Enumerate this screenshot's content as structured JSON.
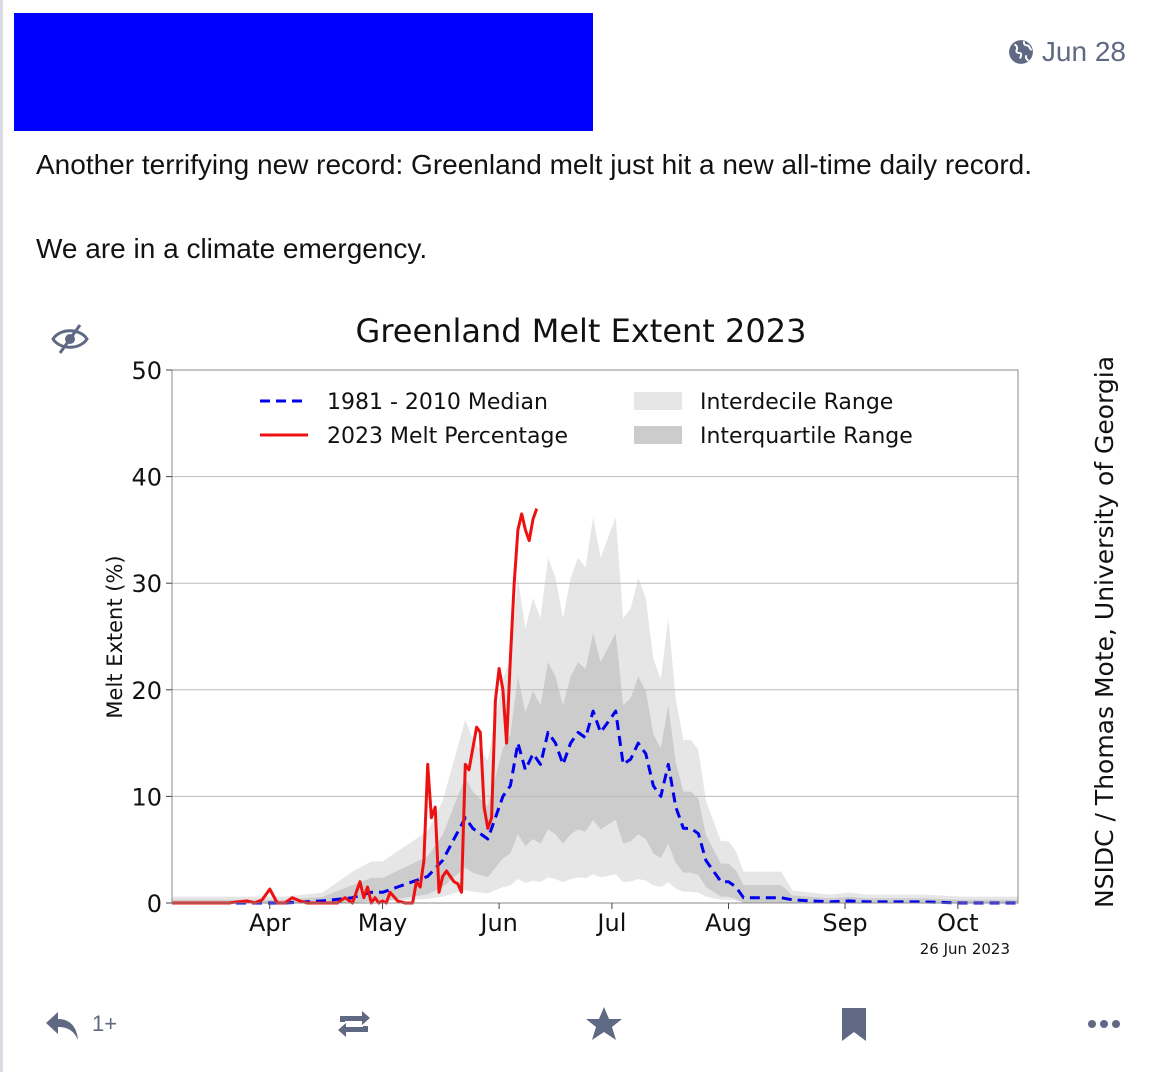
{
  "post": {
    "timestamp": "Jun 28",
    "text_line1": "Another terrifying new record: Greenland melt just hit a new all-time daily record.",
    "text_line2": "We are in a climate emergency.",
    "reply_count": "1+"
  },
  "icons": {
    "visibility": "globe-icon",
    "hide_media": "eye-slash-icon",
    "reply": "reply-icon",
    "boost": "boost-icon",
    "favourite": "star-icon",
    "bookmark": "bookmark-icon",
    "more": "more-icon"
  },
  "colors": {
    "redaction": "#0000ff",
    "muted": "#606984",
    "median_line": "#0000ee",
    "melt_line": "#ee1111",
    "interdecile": "#e6e6e6",
    "interquartile": "#cccccc"
  },
  "chart_data": {
    "type": "line",
    "title": "Greenland Melt Extent 2023",
    "ylabel": "Melt Extent (%)",
    "xlabel": "",
    "ylim": [
      0,
      50
    ],
    "yticks": [
      0,
      10,
      20,
      30,
      40,
      50
    ],
    "xlim": [
      80,
      305
    ],
    "months": [
      {
        "label": "Apr",
        "day": 106
      },
      {
        "label": "May",
        "day": 136
      },
      {
        "label": "Jun",
        "day": 167
      },
      {
        "label": "Jul",
        "day": 197
      },
      {
        "label": "Aug",
        "day": 228
      },
      {
        "label": "Sep",
        "day": 259
      },
      {
        "label": "Oct",
        "day": 289
      }
    ],
    "grid": true,
    "legend_position": "top",
    "date_label": "26 Jun 2023",
    "credit": "NSIDC / Thomas Mote, University of Georgia",
    "legend": {
      "median": "1981 - 2010 Median",
      "melt": "2023 Melt Percentage",
      "interdecile": "Interdecile Range",
      "interquartile": "Interquartile Range"
    },
    "series": [
      {
        "name": "1981 - 2010 Median",
        "style": "dashed",
        "x": [
          80,
          100,
          110,
          120,
          128,
          133,
          136,
          140,
          144,
          148,
          152,
          155,
          158,
          160,
          162,
          164,
          166,
          168,
          170,
          172,
          174,
          176,
          178,
          180,
          182,
          184,
          186,
          188,
          190,
          192,
          194,
          196,
          198,
          200,
          202,
          204,
          206,
          208,
          210,
          212,
          214,
          216,
          218,
          220,
          222,
          224,
          226,
          228,
          230,
          232,
          234,
          236,
          238,
          240,
          242,
          245,
          250,
          255,
          260,
          265,
          270,
          280,
          290,
          305
        ],
        "y": [
          0,
          0,
          0,
          0.2,
          0.5,
          1,
          1,
          1.5,
          2,
          2.5,
          4,
          6,
          8,
          7,
          6.5,
          6,
          8,
          10,
          11,
          15,
          12.5,
          14,
          13,
          16,
          15,
          13,
          15,
          16,
          15.5,
          18,
          16,
          17,
          18,
          13,
          13.5,
          15,
          14,
          11,
          10,
          13,
          9,
          7,
          7,
          6.5,
          4,
          3,
          2,
          2,
          1.5,
          0.5,
          0.5,
          0.5,
          0.5,
          0.5,
          0.5,
          0.3,
          0.2,
          0.1,
          0.2,
          0.1,
          0.1,
          0.1,
          0,
          0
        ]
      },
      {
        "name": "2023 Melt Percentage",
        "style": "solid",
        "x": [
          80,
          95,
          100,
          102,
          104,
          106,
          108,
          110,
          112,
          114,
          116,
          118,
          120,
          122,
          124,
          126,
          128,
          130,
          131,
          132,
          133,
          134,
          135,
          136,
          137,
          138,
          140,
          142,
          144,
          145,
          146,
          147,
          148,
          149,
          150,
          151,
          152,
          153,
          154,
          155,
          156,
          157,
          158,
          159,
          160,
          161,
          162,
          163,
          164,
          165,
          166,
          167,
          168,
          169,
          170,
          171,
          172,
          173,
          174,
          175,
          176,
          177
        ],
        "y": [
          0,
          0,
          0.2,
          0,
          0.3,
          1.3,
          0,
          0,
          0.5,
          0.2,
          0,
          0,
          0,
          0,
          0,
          0.5,
          0,
          2,
          0.5,
          1.5,
          0,
          0.5,
          0,
          0.2,
          0,
          1,
          0.2,
          0,
          0,
          2,
          1.5,
          4,
          13,
          8,
          9,
          1,
          2.5,
          3,
          2.5,
          2,
          1.8,
          1,
          13,
          12.5,
          14.5,
          16.5,
          16,
          9,
          7,
          8,
          19,
          22,
          20,
          15,
          23,
          30,
          35,
          36.5,
          35,
          34,
          36,
          37
        ]
      }
    ]
  }
}
